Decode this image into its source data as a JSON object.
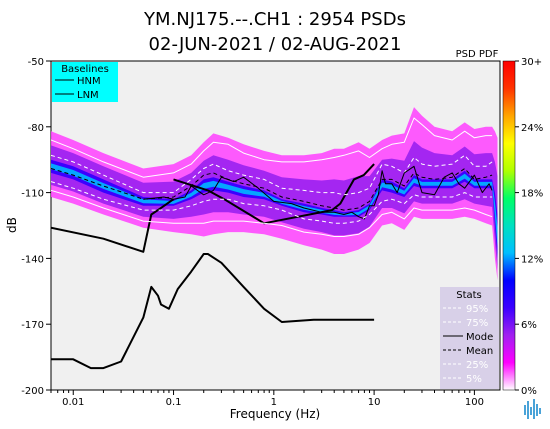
{
  "chart_data": {
    "type": "heatmap",
    "title_line1": "YM.NJ175.--.CH1 : 2954 PSDs",
    "title_line2": "02-JUN-2021 / 02-AUG-2021",
    "xlabel": "Frequency (Hz)",
    "ylabel": "dB",
    "x_scale": "log",
    "xlim": [
      0.006,
      180
    ],
    "ylim": [
      -200,
      -50
    ],
    "x_ticks": [
      {
        "value": 0.01,
        "label": "0.01"
      },
      {
        "value": 0.1,
        "label": "0.1"
      },
      {
        "value": 1,
        "label": "1"
      },
      {
        "value": 10,
        "label": "10"
      },
      {
        "value": 100,
        "label": "100"
      }
    ],
    "y_ticks": [
      {
        "value": -50,
        "label": "-50"
      },
      {
        "value": -80,
        "label": "-80"
      },
      {
        "value": -110,
        "label": "-110"
      },
      {
        "value": -140,
        "label": "-140"
      },
      {
        "value": -170,
        "label": "-170"
      },
      {
        "value": -200,
        "label": "-200"
      }
    ],
    "colorbar": {
      "title": "PSD PDF",
      "colors": [
        "#ffffff",
        "#ff00ff",
        "#a020f0",
        "#3b00ff",
        "#0000ff",
        "#00bfff",
        "#00e0c0",
        "#00ff66",
        "#b0ff00",
        "#ffff00",
        "#ffa500",
        "#ff3300",
        "#ff0000"
      ],
      "ticks": [
        {
          "value": 0,
          "label": "0%"
        },
        {
          "value": 6,
          "label": "6%"
        },
        {
          "value": 12,
          "label": "12%"
        },
        {
          "value": 18,
          "label": "18%"
        },
        {
          "value": 24,
          "label": "24%"
        },
        {
          "value": 30,
          "label": "30+"
        }
      ],
      "range": [
        0,
        30
      ]
    },
    "baselines_legend": {
      "title": "Baselines",
      "items": [
        "HNM",
        "LNM"
      ],
      "background": "#00ffff"
    },
    "stats_legend": {
      "title": "Stats",
      "items": [
        {
          "label": "95%",
          "style": "dashed",
          "color": "#ffffff"
        },
        {
          "label": "75%",
          "style": "dashed",
          "color": "#ffffff"
        },
        {
          "label": "Mode",
          "style": "solid",
          "color": "#000000"
        },
        {
          "label": "Mean",
          "style": "dashed",
          "color": "#000000"
        },
        {
          "label": "25%",
          "style": "dashed",
          "color": "#ffffff"
        },
        {
          "label": "5%",
          "style": "dashed",
          "color": "#ffffff"
        }
      ],
      "background": "#d8d0e8"
    },
    "series": [
      {
        "id": "hnm",
        "style": "solid",
        "color": "#000000",
        "width": 2,
        "x": [
          0.1,
          0.22,
          0.32,
          0.8,
          3.8,
          4.6,
          6.3,
          7.9,
          10
        ],
        "y": [
          -104,
          -109,
          -113,
          -124,
          -118,
          -115,
          -104,
          -102,
          -97
        ]
      },
      {
        "id": "lnm",
        "style": "solid",
        "color": "#000000",
        "width": 2,
        "x": [
          0.006,
          0.01,
          0.015,
          0.02,
          0.03,
          0.05,
          0.06,
          0.07,
          0.075,
          0.09,
          0.11,
          0.15,
          0.2,
          0.22,
          0.3,
          0.5,
          0.8,
          1.2,
          2.5,
          6,
          10
        ],
        "y": [
          -186,
          -186,
          -190,
          -190,
          -187,
          -167,
          -153,
          -157,
          -161,
          -163,
          -154,
          -146,
          -138,
          -138,
          -142,
          -153,
          -163,
          -169,
          -168,
          -168,
          -168
        ]
      },
      {
        "id": "left-nm",
        "style": "solid",
        "color": "#000000",
        "width": 2,
        "x": [
          0.006,
          0.02,
          0.05,
          0.06,
          0.07,
          0.1
        ],
        "y": [
          -126,
          -131,
          -137,
          -120,
          -118,
          -113
        ]
      },
      {
        "id": "p95",
        "style": "solid",
        "color": "#ffffff",
        "width": 1,
        "x": [
          0.006,
          0.01,
          0.02,
          0.05,
          0.1,
          0.15,
          0.2,
          0.25,
          0.35,
          0.5,
          0.8,
          1.2,
          2,
          3,
          4,
          5,
          7,
          9,
          12,
          15,
          20,
          25,
          30,
          40,
          60,
          80,
          100,
          130,
          150
        ],
        "y": [
          -86,
          -90,
          -96,
          -103,
          -101,
          -97,
          -91,
          -87,
          -88,
          -92,
          -95,
          -96,
          -96,
          -95,
          -94,
          -93,
          -91,
          -94,
          -90,
          -88,
          -87,
          -76,
          -79,
          -84,
          -86,
          -82,
          -85,
          -84,
          -84
        ]
      },
      {
        "id": "p75",
        "style": "dashed",
        "color": "#ffffff",
        "width": 1,
        "x": [
          0.006,
          0.01,
          0.02,
          0.05,
          0.1,
          0.15,
          0.2,
          0.25,
          0.35,
          0.5,
          0.8,
          1.2,
          2,
          3,
          4,
          5,
          7,
          9,
          12,
          15,
          20,
          25,
          30,
          40,
          60,
          80,
          100,
          130,
          150
        ],
        "y": [
          -93,
          -96,
          -102,
          -110,
          -110,
          -104,
          -99,
          -97,
          -100,
          -102,
          -104,
          -108,
          -109,
          -110,
          -110,
          -111,
          -110,
          -108,
          -97,
          -98,
          -101,
          -94,
          -97,
          -98,
          -97,
          -93,
          -98,
          -98,
          -96
        ]
      },
      {
        "id": "mode",
        "style": "solid",
        "color": "#000000",
        "width": 1,
        "x": [
          0.05,
          0.08,
          0.1,
          0.13,
          0.15,
          0.2,
          0.25,
          0.3,
          0.4,
          0.5,
          0.7,
          1,
          1.5,
          2,
          3,
          4,
          5,
          6,
          7,
          8,
          9,
          10,
          11,
          12,
          13,
          15,
          17,
          20,
          25,
          30,
          40,
          50,
          60,
          70,
          80,
          100,
          120,
          140,
          150
        ],
        "y": [
          -113,
          -112,
          -113,
          -112,
          -107,
          -111,
          -109,
          -103,
          -105,
          -103,
          -108,
          -114,
          -115,
          -117,
          -119,
          -119,
          -120,
          -119,
          -121,
          -122,
          -116,
          -116,
          -111,
          -100,
          -106,
          -106,
          -110,
          -101,
          -98,
          -110,
          -111,
          -103,
          -101,
          -106,
          -108,
          -102,
          -110,
          -106,
          -109
        ]
      },
      {
        "id": "mean",
        "style": "dashed",
        "color": "#000000",
        "width": 1,
        "x": [
          0.006,
          0.01,
          0.02,
          0.05,
          0.1,
          0.15,
          0.2,
          0.25,
          0.35,
          0.5,
          0.8,
          1.2,
          2,
          3,
          4,
          5,
          7,
          9,
          12,
          15,
          20,
          25,
          30,
          40,
          60,
          80,
          100,
          130,
          150
        ],
        "y": [
          -99,
          -102,
          -107,
          -113,
          -112,
          -107,
          -102,
          -101,
          -104,
          -106,
          -108,
          -112,
          -114,
          -116,
          -117,
          -118,
          -117,
          -114,
          -104,
          -104,
          -107,
          -101,
          -103,
          -104,
          -103,
          -99,
          -104,
          -103,
          -102
        ]
      },
      {
        "id": "p25",
        "style": "dashed",
        "color": "#ffffff",
        "width": 1,
        "x": [
          0.006,
          0.01,
          0.02,
          0.05,
          0.1,
          0.15,
          0.2,
          0.25,
          0.35,
          0.5,
          0.8,
          1.2,
          2,
          3,
          4,
          5,
          7,
          9,
          12,
          15,
          20,
          25,
          30,
          40,
          60,
          80,
          100,
          130,
          150
        ],
        "y": [
          -105,
          -108,
          -113,
          -118,
          -118,
          -116,
          -114,
          -113,
          -113,
          -115,
          -116,
          -118,
          -122,
          -123,
          -124,
          -124,
          -123,
          -120,
          -114,
          -113,
          -115,
          -111,
          -112,
          -112,
          -112,
          -110,
          -112,
          -112,
          -112
        ]
      },
      {
        "id": "p5",
        "style": "solid",
        "color": "#ffffff",
        "width": 1,
        "x": [
          0.006,
          0.01,
          0.02,
          0.05,
          0.1,
          0.15,
          0.2,
          0.25,
          0.35,
          0.5,
          0.8,
          1.2,
          2,
          3,
          4,
          5,
          7,
          9,
          12,
          15,
          20,
          25,
          30,
          40,
          60,
          80,
          100,
          130,
          150
        ],
        "y": [
          -109,
          -112,
          -117,
          -123,
          -124,
          -124,
          -124,
          -123,
          -123,
          -123,
          -124,
          -125,
          -128,
          -129,
          -130,
          -130,
          -129,
          -126,
          -120,
          -119,
          -122,
          -117,
          -118,
          -118,
          -118,
          -117,
          -118,
          -120,
          -121
        ]
      }
    ],
    "density_band": {
      "x": [
        0.006,
        0.01,
        0.02,
        0.05,
        0.1,
        0.15,
        0.2,
        0.25,
        0.35,
        0.5,
        0.8,
        1.2,
        2,
        3,
        4,
        5,
        7,
        9,
        12,
        15,
        20,
        25,
        30,
        40,
        60,
        80,
        100,
        130,
        150,
        160,
        170
      ],
      "upper": [
        -82,
        -86,
        -92,
        -99,
        -97,
        -93,
        -87,
        -83,
        -85,
        -88,
        -91,
        -93,
        -93,
        -92,
        -90,
        -90,
        -87,
        -90,
        -86,
        -84,
        -83,
        -71,
        -75,
        -80,
        -82,
        -78,
        -81,
        -80,
        -80,
        -82,
        -85
      ],
      "lower": [
        -112,
        -115,
        -120,
        -126,
        -128,
        -129,
        -130,
        -129,
        -128,
        -128,
        -129,
        -131,
        -134,
        -136,
        -138,
        -138,
        -136,
        -133,
        -125,
        -124,
        -127,
        -121,
        -122,
        -122,
        -122,
        -121,
        -122,
        -124,
        -125,
        -140,
        -150
      ],
      "core_upper": [
        -95,
        -98,
        -104,
        -112,
        -113,
        -109,
        -104,
        -103,
        -105,
        -107,
        -109,
        -113,
        -115,
        -117,
        -118,
        -119,
        -118,
        -115,
        -104,
        -105,
        -108,
        -102,
        -104,
        -104,
        -104,
        -100,
        -104,
        -104,
        -104,
        -110,
        -120
      ],
      "core_lower": [
        -101,
        -104,
        -110,
        -116,
        -116,
        -113,
        -110,
        -109,
        -110,
        -112,
        -113,
        -116,
        -119,
        -120,
        -121,
        -121,
        -121,
        -118,
        -109,
        -110,
        -112,
        -107,
        -108,
        -108,
        -108,
        -105,
        -108,
        -108,
        -108,
        -125,
        -140
      ]
    }
  }
}
